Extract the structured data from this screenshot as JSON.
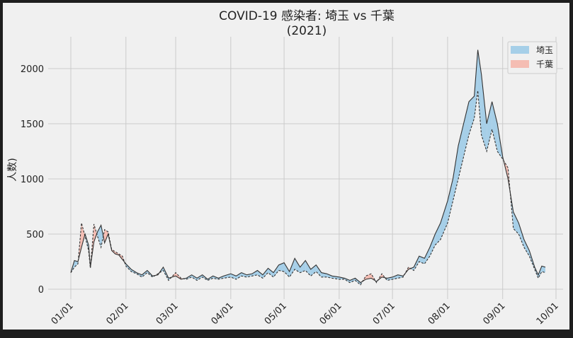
{
  "chart_data": {
    "type": "area",
    "title": "COVID-19 感染者: 埼玉 vs 千葉",
    "subtitle": "(2021)",
    "xlabel": "",
    "ylabel": "人数)",
    "x_range": [
      "2021-01-01",
      "2021-10-01"
    ],
    "ylim": [
      -80,
      2260
    ],
    "y_ticks": [
      0,
      500,
      1000,
      1500,
      2000
    ],
    "x_ticks": [
      {
        "date": "2021-01-01",
        "label": "01/01"
      },
      {
        "date": "2021-02-01",
        "label": "02/01"
      },
      {
        "date": "2021-03-01",
        "label": "03/01"
      },
      {
        "date": "2021-04-01",
        "label": "04/01"
      },
      {
        "date": "2021-05-01",
        "label": "05/01"
      },
      {
        "date": "2021-06-01",
        "label": "06/01"
      },
      {
        "date": "2021-07-01",
        "label": "07/01"
      },
      {
        "date": "2021-08-01",
        "label": "08/01"
      },
      {
        "date": "2021-09-01",
        "label": "09/01"
      },
      {
        "date": "2021-10-01",
        "label": "10/01"
      }
    ],
    "grid": true,
    "legend": "top-right",
    "legend_entries": [
      {
        "label": "埼玉",
        "color": "#a6cfe8"
      },
      {
        "label": "千葉",
        "color": "#f5bdb3"
      }
    ],
    "colors": {
      "saitama_fill": "#a6cfe8",
      "chiba_fill": "#f5bdb3",
      "line": "#333333",
      "background": "#f0f0f0",
      "frame": "#1e1e1e"
    },
    "series": [
      {
        "name": "埼玉",
        "style": "solid",
        "points": [
          [
            "2021-01-01",
            150
          ],
          [
            "2021-01-03",
            260
          ],
          [
            "2021-01-05",
            250
          ],
          [
            "2021-01-07",
            380
          ],
          [
            "2021-01-09",
            500
          ],
          [
            "2021-01-11",
            400
          ],
          [
            "2021-01-12",
            200
          ],
          [
            "2021-01-14",
            430
          ],
          [
            "2021-01-16",
            520
          ],
          [
            "2021-01-18",
            580
          ],
          [
            "2021-01-20",
            420
          ],
          [
            "2021-01-22",
            500
          ],
          [
            "2021-01-24",
            350
          ],
          [
            "2021-01-26",
            320
          ],
          [
            "2021-01-28",
            310
          ],
          [
            "2021-01-30",
            270
          ],
          [
            "2021-02-01",
            230
          ],
          [
            "2021-02-04",
            180
          ],
          [
            "2021-02-07",
            150
          ],
          [
            "2021-02-10",
            130
          ],
          [
            "2021-02-13",
            170
          ],
          [
            "2021-02-16",
            120
          ],
          [
            "2021-02-19",
            130
          ],
          [
            "2021-02-22",
            200
          ],
          [
            "2021-02-25",
            100
          ],
          [
            "2021-03-01",
            120
          ],
          [
            "2021-03-04",
            90
          ],
          [
            "2021-03-07",
            100
          ],
          [
            "2021-03-10",
            130
          ],
          [
            "2021-03-13",
            100
          ],
          [
            "2021-03-16",
            130
          ],
          [
            "2021-03-19",
            90
          ],
          [
            "2021-03-22",
            120
          ],
          [
            "2021-03-25",
            100
          ],
          [
            "2021-03-28",
            120
          ],
          [
            "2021-04-01",
            140
          ],
          [
            "2021-04-04",
            120
          ],
          [
            "2021-04-07",
            150
          ],
          [
            "2021-04-10",
            130
          ],
          [
            "2021-04-13",
            140
          ],
          [
            "2021-04-16",
            170
          ],
          [
            "2021-04-19",
            130
          ],
          [
            "2021-04-22",
            190
          ],
          [
            "2021-04-25",
            150
          ],
          [
            "2021-04-28",
            220
          ],
          [
            "2021-05-01",
            240
          ],
          [
            "2021-05-04",
            160
          ],
          [
            "2021-05-07",
            280
          ],
          [
            "2021-05-10",
            200
          ],
          [
            "2021-05-13",
            260
          ],
          [
            "2021-05-16",
            180
          ],
          [
            "2021-05-19",
            220
          ],
          [
            "2021-05-22",
            150
          ],
          [
            "2021-05-25",
            140
          ],
          [
            "2021-05-28",
            120
          ],
          [
            "2021-06-01",
            110
          ],
          [
            "2021-06-04",
            100
          ],
          [
            "2021-06-07",
            80
          ],
          [
            "2021-06-10",
            100
          ],
          [
            "2021-06-13",
            60
          ],
          [
            "2021-06-16",
            90
          ],
          [
            "2021-06-19",
            100
          ],
          [
            "2021-06-22",
            70
          ],
          [
            "2021-06-25",
            110
          ],
          [
            "2021-06-28",
            100
          ],
          [
            "2021-07-01",
            110
          ],
          [
            "2021-07-04",
            130
          ],
          [
            "2021-07-07",
            120
          ],
          [
            "2021-07-10",
            180
          ],
          [
            "2021-07-13",
            200
          ],
          [
            "2021-07-16",
            300
          ],
          [
            "2021-07-19",
            280
          ],
          [
            "2021-07-22",
            380
          ],
          [
            "2021-07-25",
            500
          ],
          [
            "2021-07-28",
            600
          ],
          [
            "2021-08-01",
            800
          ],
          [
            "2021-08-04",
            1000
          ],
          [
            "2021-08-07",
            1300
          ],
          [
            "2021-08-10",
            1500
          ],
          [
            "2021-08-13",
            1700
          ],
          [
            "2021-08-16",
            1750
          ],
          [
            "2021-08-18",
            2170
          ],
          [
            "2021-08-20",
            1950
          ],
          [
            "2021-08-23",
            1500
          ],
          [
            "2021-08-26",
            1700
          ],
          [
            "2021-08-29",
            1500
          ],
          [
            "2021-09-01",
            1200
          ],
          [
            "2021-09-04",
            1000
          ],
          [
            "2021-09-07",
            700
          ],
          [
            "2021-09-10",
            600
          ],
          [
            "2021-09-13",
            450
          ],
          [
            "2021-09-16",
            350
          ],
          [
            "2021-09-19",
            200
          ],
          [
            "2021-09-21",
            130
          ],
          [
            "2021-09-23",
            210
          ],
          [
            "2021-09-25",
            200
          ]
        ]
      },
      {
        "name": "千葉",
        "style": "dashed",
        "points": [
          [
            "2021-01-01",
            150
          ],
          [
            "2021-01-03",
            200
          ],
          [
            "2021-01-05",
            230
          ],
          [
            "2021-01-07",
            600
          ],
          [
            "2021-01-09",
            480
          ],
          [
            "2021-01-11",
            350
          ],
          [
            "2021-01-12",
            190
          ],
          [
            "2021-01-14",
            590
          ],
          [
            "2021-01-16",
            480
          ],
          [
            "2021-01-18",
            380
          ],
          [
            "2021-01-20",
            540
          ],
          [
            "2021-01-22",
            520
          ],
          [
            "2021-01-24",
            360
          ],
          [
            "2021-01-26",
            340
          ],
          [
            "2021-01-28",
            320
          ],
          [
            "2021-01-30",
            300
          ],
          [
            "2021-02-01",
            210
          ],
          [
            "2021-02-04",
            160
          ],
          [
            "2021-02-07",
            140
          ],
          [
            "2021-02-10",
            110
          ],
          [
            "2021-02-13",
            150
          ],
          [
            "2021-02-16",
            110
          ],
          [
            "2021-02-19",
            140
          ],
          [
            "2021-02-22",
            170
          ],
          [
            "2021-02-25",
            80
          ],
          [
            "2021-03-01",
            150
          ],
          [
            "2021-03-04",
            100
          ],
          [
            "2021-03-07",
            90
          ],
          [
            "2021-03-10",
            110
          ],
          [
            "2021-03-13",
            80
          ],
          [
            "2021-03-16",
            110
          ],
          [
            "2021-03-19",
            80
          ],
          [
            "2021-03-22",
            100
          ],
          [
            "2021-03-25",
            90
          ],
          [
            "2021-03-28",
            100
          ],
          [
            "2021-04-01",
            110
          ],
          [
            "2021-04-04",
            90
          ],
          [
            "2021-04-07",
            120
          ],
          [
            "2021-04-10",
            110
          ],
          [
            "2021-04-13",
            120
          ],
          [
            "2021-04-16",
            130
          ],
          [
            "2021-04-19",
            100
          ],
          [
            "2021-04-22",
            150
          ],
          [
            "2021-04-25",
            110
          ],
          [
            "2021-04-28",
            170
          ],
          [
            "2021-05-01",
            160
          ],
          [
            "2021-05-04",
            110
          ],
          [
            "2021-05-07",
            180
          ],
          [
            "2021-05-10",
            150
          ],
          [
            "2021-05-13",
            170
          ],
          [
            "2021-05-16",
            120
          ],
          [
            "2021-05-19",
            160
          ],
          [
            "2021-05-22",
            110
          ],
          [
            "2021-05-25",
            110
          ],
          [
            "2021-05-28",
            100
          ],
          [
            "2021-06-01",
            90
          ],
          [
            "2021-06-04",
            90
          ],
          [
            "2021-06-07",
            60
          ],
          [
            "2021-06-10",
            80
          ],
          [
            "2021-06-13",
            40
          ],
          [
            "2021-06-16",
            120
          ],
          [
            "2021-06-19",
            140
          ],
          [
            "2021-06-22",
            60
          ],
          [
            "2021-06-25",
            140
          ],
          [
            "2021-06-28",
            80
          ],
          [
            "2021-07-01",
            90
          ],
          [
            "2021-07-04",
            100
          ],
          [
            "2021-07-07",
            110
          ],
          [
            "2021-07-10",
            200
          ],
          [
            "2021-07-13",
            170
          ],
          [
            "2021-07-16",
            250
          ],
          [
            "2021-07-19",
            230
          ],
          [
            "2021-07-22",
            300
          ],
          [
            "2021-07-25",
            400
          ],
          [
            "2021-07-28",
            450
          ],
          [
            "2021-08-01",
            600
          ],
          [
            "2021-08-04",
            800
          ],
          [
            "2021-08-07",
            1000
          ],
          [
            "2021-08-10",
            1200
          ],
          [
            "2021-08-13",
            1400
          ],
          [
            "2021-08-16",
            1550
          ],
          [
            "2021-08-18",
            1800
          ],
          [
            "2021-08-20",
            1400
          ],
          [
            "2021-08-23",
            1250
          ],
          [
            "2021-08-26",
            1450
          ],
          [
            "2021-08-29",
            1250
          ],
          [
            "2021-09-01",
            1180
          ],
          [
            "2021-09-04",
            1100
          ],
          [
            "2021-09-07",
            550
          ],
          [
            "2021-09-10",
            500
          ],
          [
            "2021-09-13",
            380
          ],
          [
            "2021-09-16",
            300
          ],
          [
            "2021-09-19",
            180
          ],
          [
            "2021-09-21",
            100
          ],
          [
            "2021-09-23",
            160
          ],
          [
            "2021-09-25",
            150
          ]
        ]
      }
    ]
  }
}
